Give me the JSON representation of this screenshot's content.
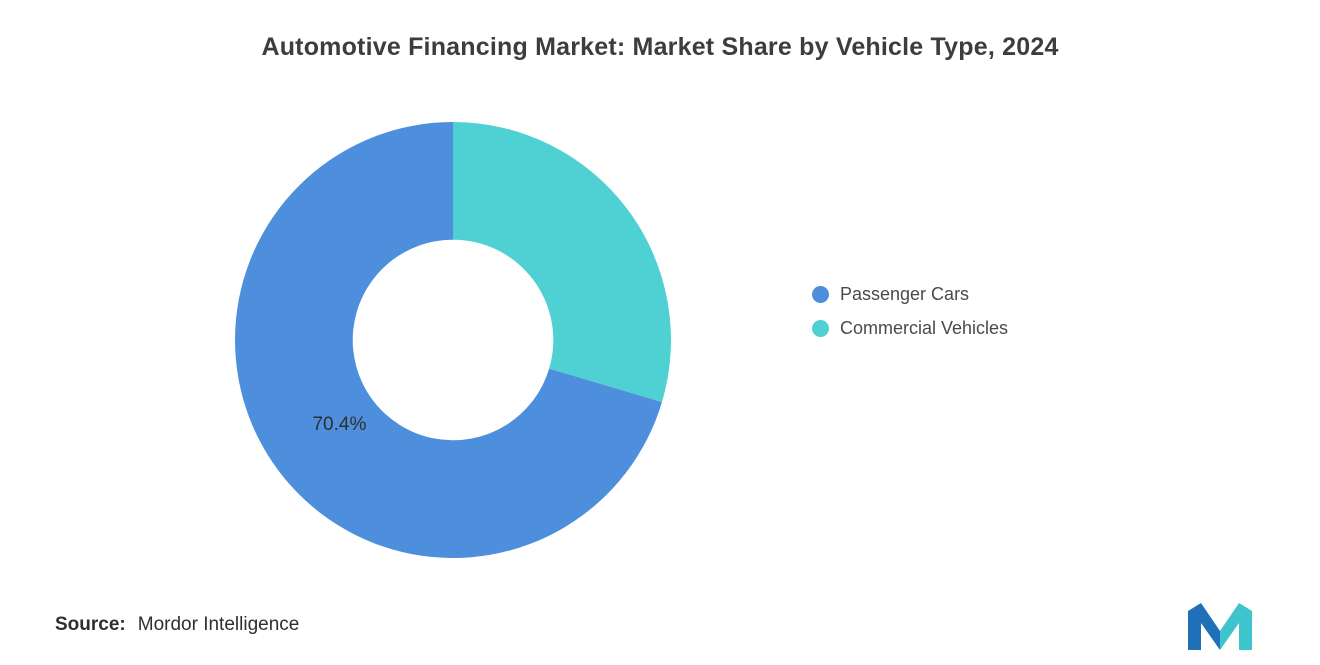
{
  "chart_data": {
    "type": "donut",
    "title": "Automotive Financing Market: Market Share by Vehicle Type, 2024",
    "series": [
      {
        "name": "Passenger Cars",
        "value": 70.4,
        "label": "70.4%",
        "color": "#4D8FDC"
      },
      {
        "name": "Commercial Vehicles",
        "value": 29.6,
        "label": "",
        "color": "#4FD1D4"
      }
    ],
    "start_angle": "top",
    "direction": "counterclockwise",
    "inner_radius_ratio": 0.46,
    "legend_position": "right",
    "background": "#ffffff"
  },
  "source": {
    "prefix": "Source:",
    "text": "Mordor Intelligence"
  },
  "logo": {
    "name": "mordor-intelligence-logo",
    "blue": "#1F70B8",
    "teal": "#3EC4CD"
  }
}
